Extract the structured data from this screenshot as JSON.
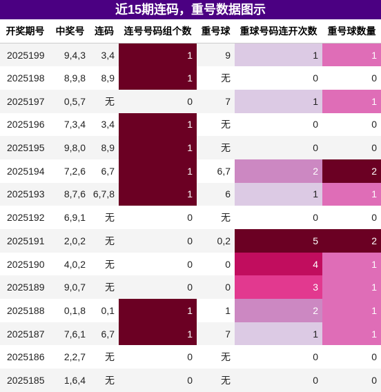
{
  "title": "近15期连码，重号数据图示",
  "columns": [
    "开奖期号",
    "中奖号",
    "连码",
    "连号号码组个数",
    "重号球",
    "重球号码连开次数",
    "重号球数量"
  ],
  "rows": [
    [
      "2025199",
      "9,4,3",
      "3,4",
      "1",
      "9",
      "1",
      "1"
    ],
    [
      "2025198",
      "8,9,8",
      "8,9",
      "1",
      "无",
      "0",
      "0"
    ],
    [
      "2025197",
      "0,5,7",
      "无",
      "0",
      "7",
      "1",
      "1"
    ],
    [
      "2025196",
      "7,3,4",
      "3,4",
      "1",
      "无",
      "0",
      "0"
    ],
    [
      "2025195",
      "9,8,0",
      "8,9",
      "1",
      "无",
      "0",
      "0"
    ],
    [
      "2025194",
      "7,2,6",
      "6,7",
      "1",
      "6,7",
      "2",
      "2"
    ],
    [
      "2025193",
      "8,7,6",
      "6,7,8",
      "1",
      "6",
      "1",
      "1"
    ],
    [
      "2025192",
      "6,9,1",
      "无",
      "0",
      "无",
      "0",
      "0"
    ],
    [
      "2025191",
      "2,0,2",
      "无",
      "0",
      "0,2",
      "5",
      "2"
    ],
    [
      "2025190",
      "4,0,2",
      "无",
      "0",
      "0",
      "4",
      "1"
    ],
    [
      "2025189",
      "9,0,7",
      "无",
      "0",
      "0",
      "3",
      "1"
    ],
    [
      "2025188",
      "0,1,8",
      "0,1",
      "1",
      "1",
      "2",
      "1"
    ],
    [
      "2025187",
      "7,6,1",
      "6,7",
      "1",
      "7",
      "1",
      "1"
    ],
    [
      "2025186",
      "2,2,7",
      "无",
      "0",
      "无",
      "0",
      "0"
    ],
    [
      "2025185",
      "1,6,4",
      "无",
      "0",
      "无",
      "0",
      "0"
    ]
  ]
}
